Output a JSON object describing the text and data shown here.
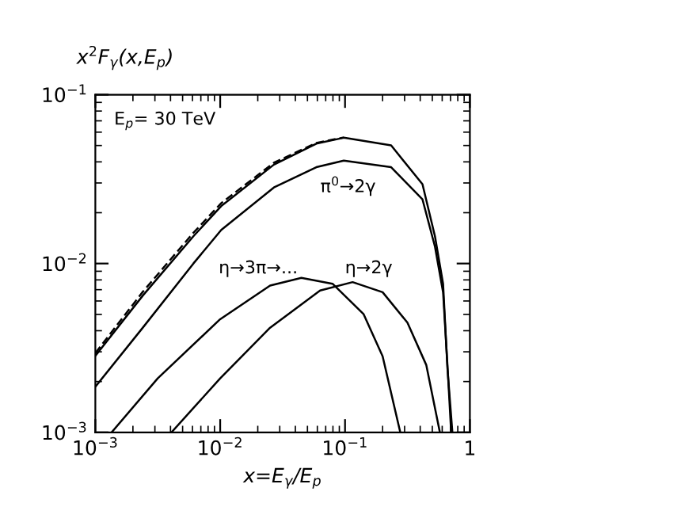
{
  "chart_data": {
    "type": "line",
    "title": "x$^{2}$F$_{γ}$(x,E$_{p}$)",
    "xlabel": "x=E$_{γ}$/E$_{p}$",
    "log": "xy",
    "legend": false,
    "grid": false,
    "xlim": [
      0.001,
      1
    ],
    "ylim": [
      0.001,
      0.1
    ],
    "xticks": [
      {
        "value": 0.001,
        "label": "10$^{−3}$"
      },
      {
        "value": 0.01,
        "label": "10$^{−2}$"
      },
      {
        "value": 0.1,
        "label": "10$^{−1}$"
      },
      1
    ],
    "yticks": [
      {
        "value": 0.001,
        "label": "10$^{−3}$"
      },
      {
        "value": 0.01,
        "label": "10$^{−2}$"
      },
      {
        "value": 0.1,
        "label": "10$^{−1}$"
      }
    ],
    "series": [
      {
        "color": "#000000",
        "line_style": "solid",
        "x": [
          0.001,
          0.0024,
          0.0061,
          0.0102,
          0.0269,
          0.0589,
          0.0977,
          0.234,
          0.417,
          0.525,
          0.61,
          0.661,
          0.724
        ],
        "values": [
          0.00284,
          0.00646,
          0.0145,
          0.0219,
          0.0385,
          0.0513,
          0.0556,
          0.0501,
          0.0295,
          0.0145,
          0.00759,
          0.0024,
          0.001
        ]
      },
      {
        "color": "#000000",
        "line_style": "dashed",
        "x": [
          0.001,
          0.0024,
          0.0061,
          0.0102,
          0.0269,
          0.0589,
          0.0977
        ],
        "values": [
          0.00295,
          0.0068,
          0.0152,
          0.0228,
          0.0395,
          0.0518,
          0.0558
        ]
      },
      {
        "color": "#000000",
        "line_style": "solid",
        "x": [
          0.001,
          0.0024,
          0.0061,
          0.0102,
          0.0269,
          0.0589,
          0.0977,
          0.234,
          0.417,
          0.525,
          0.61,
          0.661,
          0.708
        ],
        "values": [
          0.00186,
          0.00417,
          0.01,
          0.0158,
          0.0282,
          0.0372,
          0.0407,
          0.0372,
          0.024,
          0.0126,
          0.00676,
          0.00251,
          0.001
        ]
      },
      {
        "color": "#000000",
        "line_style": "solid",
        "x": [
          0.00135,
          0.00316,
          0.01,
          0.0251,
          0.0447,
          0.0794,
          0.141,
          0.2,
          0.277
        ],
        "values": [
          0.001,
          0.00209,
          0.00468,
          0.00741,
          0.00822,
          0.00759,
          0.00501,
          0.00282,
          0.001
        ]
      },
      {
        "color": "#000000",
        "line_style": "solid",
        "x": [
          0.00407,
          0.01,
          0.0251,
          0.0631,
          0.115,
          0.2,
          0.316,
          0.447,
          0.575
        ],
        "values": [
          0.001,
          0.00209,
          0.00417,
          0.00692,
          0.00776,
          0.00676,
          0.00447,
          0.00251,
          0.001
        ]
      }
    ],
    "annotations": [
      "E$_{p}$= 30 TeV",
      "π$^{0}$→2γ",
      "η→3π→...",
      "η→2γ"
    ]
  }
}
